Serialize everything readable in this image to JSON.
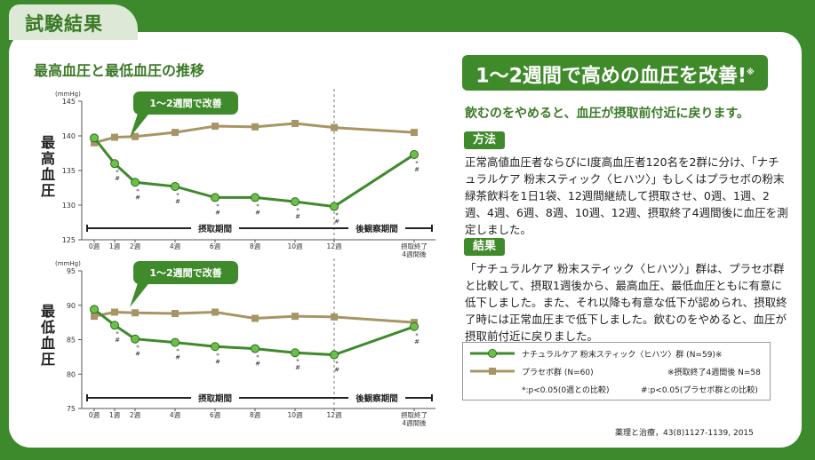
{
  "section_tab": "試験結果",
  "chart_title": "最高血圧と最低血圧の推移",
  "colors": {
    "green": "#3f8a2a",
    "green_dark": "#2e6b1f",
    "olive": "#a89566",
    "page_bg": "#3c8a2c",
    "card": "#ffffff"
  },
  "chart_data": [
    {
      "type": "line",
      "ylabel": "最高血圧",
      "unit": "(mmHg)",
      "ylim": [
        125,
        145
      ],
      "yticks": [
        125,
        130,
        135,
        140,
        145
      ],
      "x": [
        0,
        1,
        2,
        4,
        6,
        8,
        10,
        12,
        16
      ],
      "xtick_labels": [
        "0週",
        "1週",
        "2週",
        "4週",
        "6週",
        "8週",
        "10週",
        "12週",
        "摂取終了\n4週間後"
      ],
      "series": [
        {
          "name": "ナチュラルケア 粉末スティック〈ヒハツ〉群",
          "values": [
            139.7,
            136.0,
            133.3,
            132.7,
            131.1,
            131.1,
            130.5,
            129.8,
            137.3
          ]
        },
        {
          "name": "プラセボ群",
          "values": [
            139.0,
            139.8,
            139.9,
            140.5,
            141.4,
            141.3,
            141.8,
            141.2,
            140.5
          ]
        }
      ],
      "callout": "1〜2週間で改善",
      "period_intake": "摂取期間",
      "period_observe": "後観察期間",
      "sig_marks": [
        "*\n#",
        "*\n#",
        "*\n#",
        "*\n#",
        "*\n#",
        "*\n#",
        "*\n#",
        "*\n#"
      ]
    },
    {
      "type": "line",
      "ylabel": "最低血圧",
      "unit": "(mmHg)",
      "ylim": [
        75,
        95
      ],
      "yticks": [
        75,
        80,
        85,
        90,
        95
      ],
      "x": [
        0,
        1,
        2,
        4,
        6,
        8,
        10,
        12,
        16
      ],
      "xtick_labels": [
        "0週",
        "1週",
        "2週",
        "4週",
        "6週",
        "8週",
        "10週",
        "12週",
        "摂取終了\n4週間後"
      ],
      "series": [
        {
          "name": "ナチュラルケア 粉末スティック〈ヒハツ〉群",
          "values": [
            89.4,
            87.1,
            85.1,
            84.6,
            84.0,
            83.7,
            83.1,
            82.8,
            86.9
          ]
        },
        {
          "name": "プラセボ群",
          "values": [
            88.4,
            89.0,
            88.9,
            88.8,
            89.0,
            88.1,
            88.4,
            88.3,
            87.5
          ]
        }
      ],
      "callout": "1〜2週間で改善",
      "period_intake": "摂取期間",
      "period_observe": "後観察期間",
      "sig_marks": [
        "*\n#",
        "*\n#",
        "*\n#",
        "*\n#",
        "*\n#",
        "*\n#",
        "*\n#",
        "*\n#"
      ]
    }
  ],
  "headline": "1〜2週間で高めの血圧を改善!",
  "headline_note": "※",
  "subheading": "飲むのをやめると、血圧が摂取前付近に戻ります。",
  "method_label": "方法",
  "method_text": "正常高値血圧者ならびにⅠ度高血圧者120名を2群に分け、「ナチュラルケア 粉末スティック〈ヒハツ〉」もしくはプラセボの粉末緑茶飲料を1日1袋、12週間継続して摂取させ、0週、1週、2週、4週、6週、8週、10週、12週、摂取終了4週間後に血圧を測定しました。",
  "result_label": "結果",
  "result_text": "「ナチュラルケア 粉末スティック〈ヒハツ〉」群は、プラセボ群と比較して、摂取1週後から、最高血圧、最低血圧ともに有意に低下しました。また、それ以降も有意な低下が認められ、摂取終了時には正常血圧まで低下しました。飲むのをやめると、血圧が摂取前付近に戻りました。",
  "legend": {
    "item1": "ナチュラルケア 粉末スティック〈ヒハツ〉群 (N=59)※",
    "item2": "プラセボ群 (N=60)",
    "note1": "※摂取終了4週間後 N=58",
    "note2": "*:p<0.05(0週との比較)",
    "note3": "#:p<0.05(プラセボ群との比較)"
  },
  "citation": "薬理と治療，43(8)1127-1139, 2015"
}
